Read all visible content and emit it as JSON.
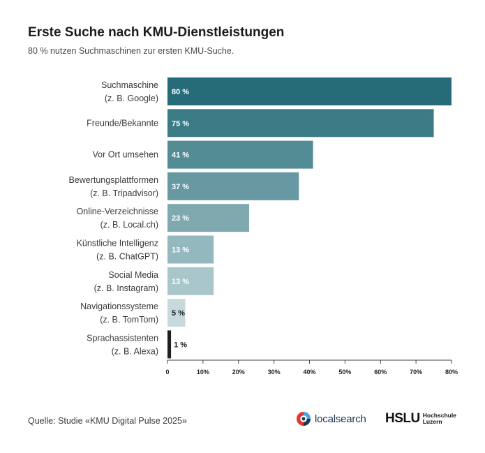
{
  "header": {
    "title": "Erste Suche nach KMU-Dienstleistungen",
    "subtitle": "80 % nutzen Suchmaschinen zur ersten KMU-Suche."
  },
  "chart_data": {
    "type": "bar",
    "orientation": "horizontal",
    "categories": [
      [
        "Suchmaschine",
        "(z. B. Google)"
      ],
      [
        "Freunde/Bekannte"
      ],
      [
        "Vor Ort umsehen"
      ],
      [
        "Bewertungsplattformen",
        "(z. B. Tripadvisor)"
      ],
      [
        "Online-Verzeichnisse",
        "(z. B. Local.ch)"
      ],
      [
        "Künstliche Intelligenz",
        "(z. B. ChatGPT)"
      ],
      [
        "Social Media",
        "(z. B. Instagram)"
      ],
      [
        "Navigationssysteme",
        "(z. B. TomTom)"
      ],
      [
        "Sprachassistenten",
        "(z. B. Alexa)"
      ]
    ],
    "values": [
      80,
      75,
      41,
      37,
      23,
      13,
      13,
      5,
      1
    ],
    "value_labels": [
      "80 %",
      "75 %",
      "41 %",
      "37 %",
      "23 %",
      "13 %",
      "13 %",
      "5 %",
      "1 %"
    ],
    "bar_colors": [
      "#256b78",
      "#3b7b86",
      "#548c96",
      "#6899a2",
      "#7fa8af",
      "#93b8be",
      "#a9c6cb",
      "#c6dadd",
      "#1f1f1f"
    ],
    "value_label_colors": [
      "#ffffff",
      "#ffffff",
      "#ffffff",
      "#ffffff",
      "#ffffff",
      "#ffffff",
      "#ffffff",
      "#1f1f1f",
      "#1f1f1f"
    ],
    "xlim": [
      0,
      80
    ],
    "ticks": [
      0,
      10,
      20,
      30,
      40,
      50,
      60,
      70,
      80
    ],
    "tick_labels": [
      "0",
      "10%",
      "20%",
      "30%",
      "40%",
      "50%",
      "60%",
      "70%",
      "80%"
    ],
    "grid": true
  },
  "footer": {
    "source": "Quelle: Studie «KMU Digital Pulse 2025»",
    "logo_localsearch": "localsearch",
    "logo_hslu": "HSLU",
    "logo_hslu_sub1": "Hochschule",
    "logo_hslu_sub2": "Luzern"
  }
}
